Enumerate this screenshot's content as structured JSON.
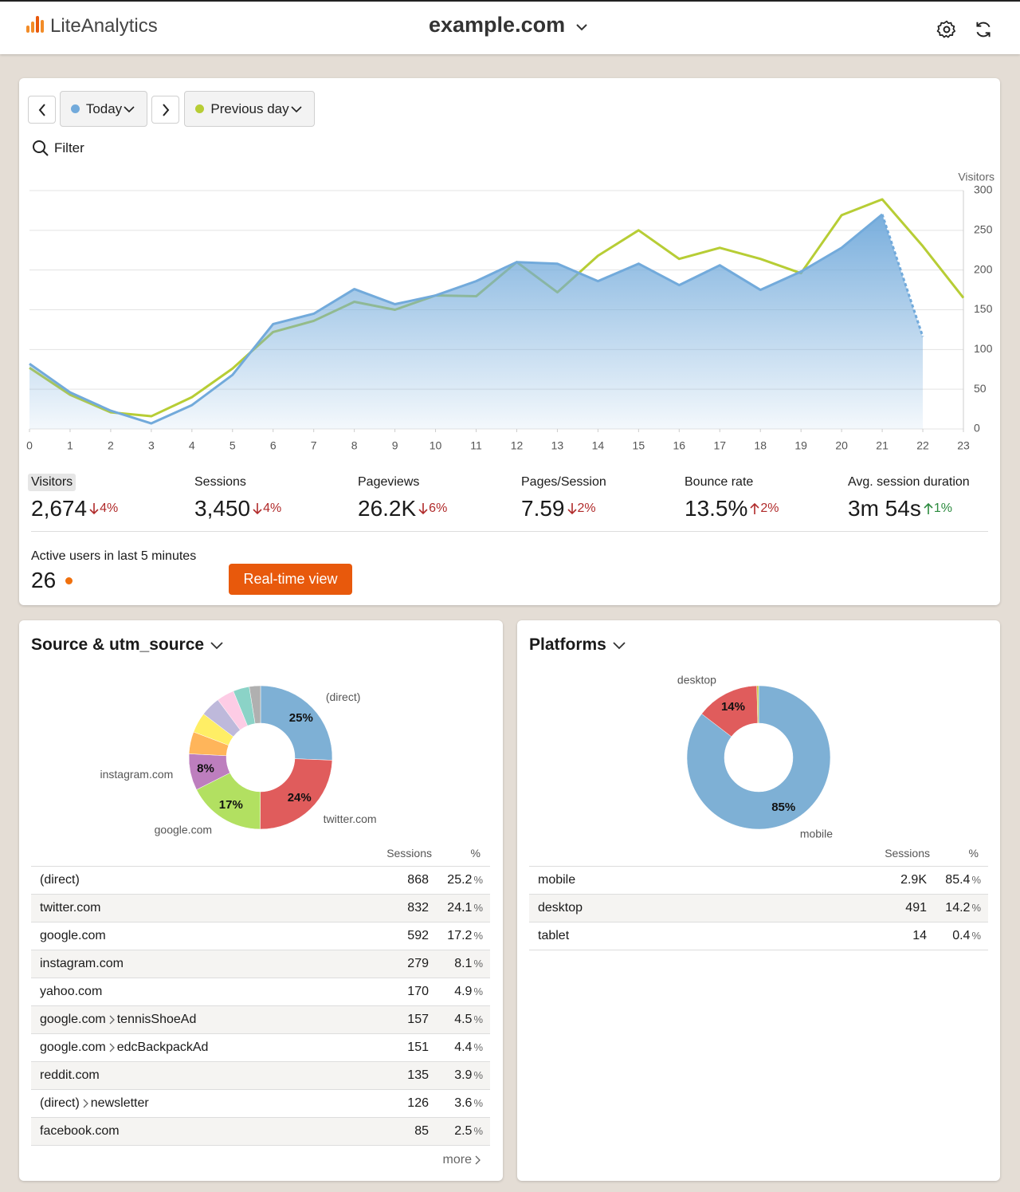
{
  "header": {
    "brand": "LiteAnalytics",
    "site": "example.com"
  },
  "controls": {
    "filter": "Filter"
  },
  "chart_data": [
    {
      "type": "line",
      "y_axis_label": "Visitors",
      "x": [
        0,
        1,
        2,
        3,
        4,
        5,
        6,
        7,
        8,
        9,
        10,
        11,
        12,
        13,
        14,
        15,
        16,
        17,
        18,
        19,
        20,
        21,
        22,
        23
      ],
      "xlim": [
        0,
        23
      ],
      "xticks": [
        0,
        1,
        2,
        3,
        4,
        5,
        6,
        7,
        8,
        9,
        10,
        11,
        12,
        13,
        14,
        15,
        16,
        17,
        18,
        19,
        20,
        21,
        22,
        23
      ],
      "ylim": [
        0,
        300
      ],
      "yticks": [
        0,
        50,
        100,
        150,
        200,
        250,
        300
      ],
      "grid": true,
      "series": [
        {
          "name": "Today",
          "color": "#72aadb",
          "area": true,
          "dashed_last": true,
          "values": [
            82,
            46,
            23,
            7,
            30,
            68,
            132,
            145,
            176,
            157,
            168,
            186,
            210,
            208,
            186,
            208,
            181,
            206,
            175,
            198,
            228,
            270,
            116,
            null
          ]
        },
        {
          "name": "Previous day",
          "color": "#b7cd35",
          "values": [
            77,
            43,
            21,
            16,
            40,
            76,
            122,
            136,
            160,
            150,
            168,
            167,
            210,
            172,
            218,
            250,
            214,
            228,
            214,
            196,
            269,
            289,
            230,
            165
          ]
        }
      ]
    },
    {
      "type": "donut",
      "title": "Source & utm_source",
      "categories": [
        "(direct)",
        "twitter.com",
        "google.com",
        "instagram.com",
        null,
        null,
        null,
        null,
        null,
        null
      ],
      "values": [
        25.2,
        24.1,
        17.2,
        8.1,
        4.9,
        4.5,
        4.4,
        3.9,
        3.6,
        2.5
      ],
      "value_labels": [
        "25%",
        "24%",
        "17%",
        "8%",
        null,
        null,
        null,
        null,
        null,
        null
      ],
      "colors": [
        "#7eb0d5",
        "#e05c5c",
        "#b2e061",
        "#bd7ebe",
        "#ffb55a",
        "#ffee65",
        "#beb9db",
        "#fdcce5",
        "#8bd3c7",
        "#b0b0b0"
      ]
    },
    {
      "type": "donut",
      "title": "Platforms",
      "categories": [
        "mobile",
        "desktop",
        null
      ],
      "values": [
        85.4,
        14.2,
        0.4
      ],
      "value_labels": [
        "85%",
        "14%",
        null
      ],
      "colors": [
        "#7eb0d5",
        "#e05c5c",
        "#c9c83a"
      ]
    }
  ],
  "metrics": [
    {
      "label": "Visitors",
      "value": "2,674",
      "change": "4%",
      "direction": "down",
      "tone": "negative",
      "selected": true
    },
    {
      "label": "Sessions",
      "value": "3,450",
      "change": "4%",
      "direction": "down",
      "tone": "negative"
    },
    {
      "label": "Pageviews",
      "value": "26.2K",
      "change": "6%",
      "direction": "down",
      "tone": "negative"
    },
    {
      "label": "Pages/Session",
      "value": "7.59",
      "change": "2%",
      "direction": "down",
      "tone": "negative"
    },
    {
      "label": "Bounce rate",
      "value": "13.5%",
      "change": "2%",
      "direction": "up",
      "tone": "negative"
    },
    {
      "label": "Avg. session duration",
      "value": "3m 54s",
      "change": "1%",
      "direction": "up",
      "tone": "positive"
    }
  ],
  "active": {
    "label": "Active users in last 5 minutes",
    "value": "26",
    "button": "Real-time view"
  },
  "tables": [
    {
      "columns": [
        "Sessions",
        "%"
      ],
      "unit": "%",
      "more": "more",
      "rows": [
        {
          "name": [
            "(direct)"
          ],
          "sessions": "868",
          "percent": "25.2"
        },
        {
          "name": [
            "twitter.com"
          ],
          "sessions": "832",
          "percent": "24.1"
        },
        {
          "name": [
            "google.com"
          ],
          "sessions": "592",
          "percent": "17.2"
        },
        {
          "name": [
            "instagram.com"
          ],
          "sessions": "279",
          "percent": "8.1"
        },
        {
          "name": [
            "yahoo.com"
          ],
          "sessions": "170",
          "percent": "4.9"
        },
        {
          "name": [
            "google.com",
            "tennisShoeAd"
          ],
          "sessions": "157",
          "percent": "4.5"
        },
        {
          "name": [
            "google.com",
            "edcBackpackAd"
          ],
          "sessions": "151",
          "percent": "4.4"
        },
        {
          "name": [
            "reddit.com"
          ],
          "sessions": "135",
          "percent": "3.9"
        },
        {
          "name": [
            "(direct)",
            "newsletter"
          ],
          "sessions": "126",
          "percent": "3.6"
        },
        {
          "name": [
            "facebook.com"
          ],
          "sessions": "85",
          "percent": "2.5"
        }
      ]
    },
    {
      "columns": [
        "Sessions",
        "%"
      ],
      "unit": "%",
      "rows": [
        {
          "name": [
            "mobile"
          ],
          "sessions": "2.9K",
          "percent": "85.4"
        },
        {
          "name": [
            "desktop"
          ],
          "sessions": "491",
          "percent": "14.2"
        },
        {
          "name": [
            "tablet"
          ],
          "sessions": "14",
          "percent": "0.4"
        }
      ]
    }
  ]
}
